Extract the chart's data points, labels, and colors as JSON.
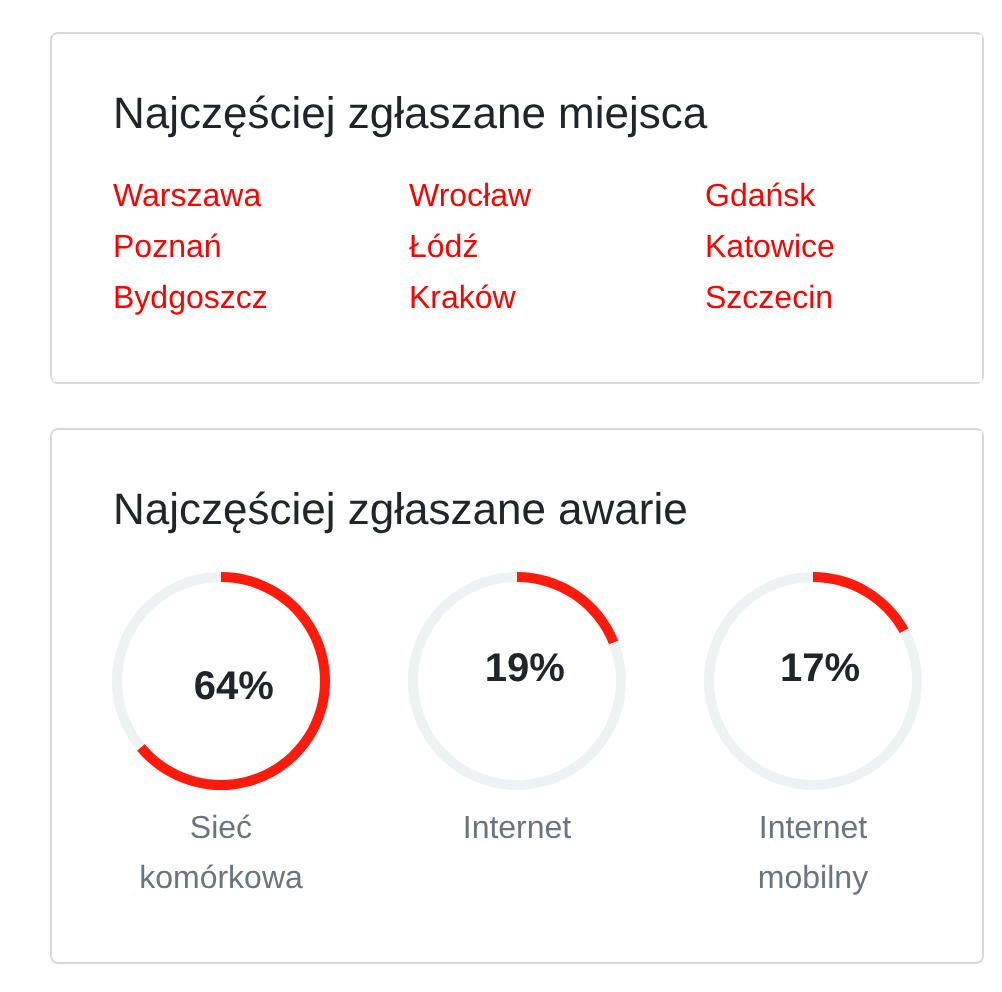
{
  "chart_data": [
    {
      "type": "other",
      "title": "Najczęściej zgłaszane miejsca",
      "annotations": [
        "Warszawa",
        "Wrocław",
        "Gdańsk",
        "Poznań",
        "Łódź",
        "Katowice",
        "Bydgoszcz",
        "Kraków",
        "Szczecin"
      ]
    },
    {
      "type": "other",
      "title": "Najczęściej zgłaszane awarie"
    },
    {
      "type": "donut",
      "title": "Sieć komórkowa",
      "categories": [
        null,
        null
      ],
      "values": [
        64,
        36
      ],
      "colors": [
        "#fe1a0c",
        "#eff2f3"
      ],
      "value_labels": [
        "64%",
        null
      ]
    },
    {
      "type": "donut",
      "title": "Internet",
      "categories": [
        null,
        null
      ],
      "values": [
        19,
        81
      ],
      "colors": [
        "#fe1a0c",
        "#eff2f3"
      ],
      "value_labels": [
        "19%",
        null
      ]
    },
    {
      "type": "donut",
      "title": "Internet mobilny",
      "categories": [
        null,
        null
      ],
      "values": [
        17,
        83
      ],
      "colors": [
        "#fe1a0c",
        "#eff2f3"
      ],
      "value_labels": [
        "17%",
        null
      ]
    }
  ]
}
